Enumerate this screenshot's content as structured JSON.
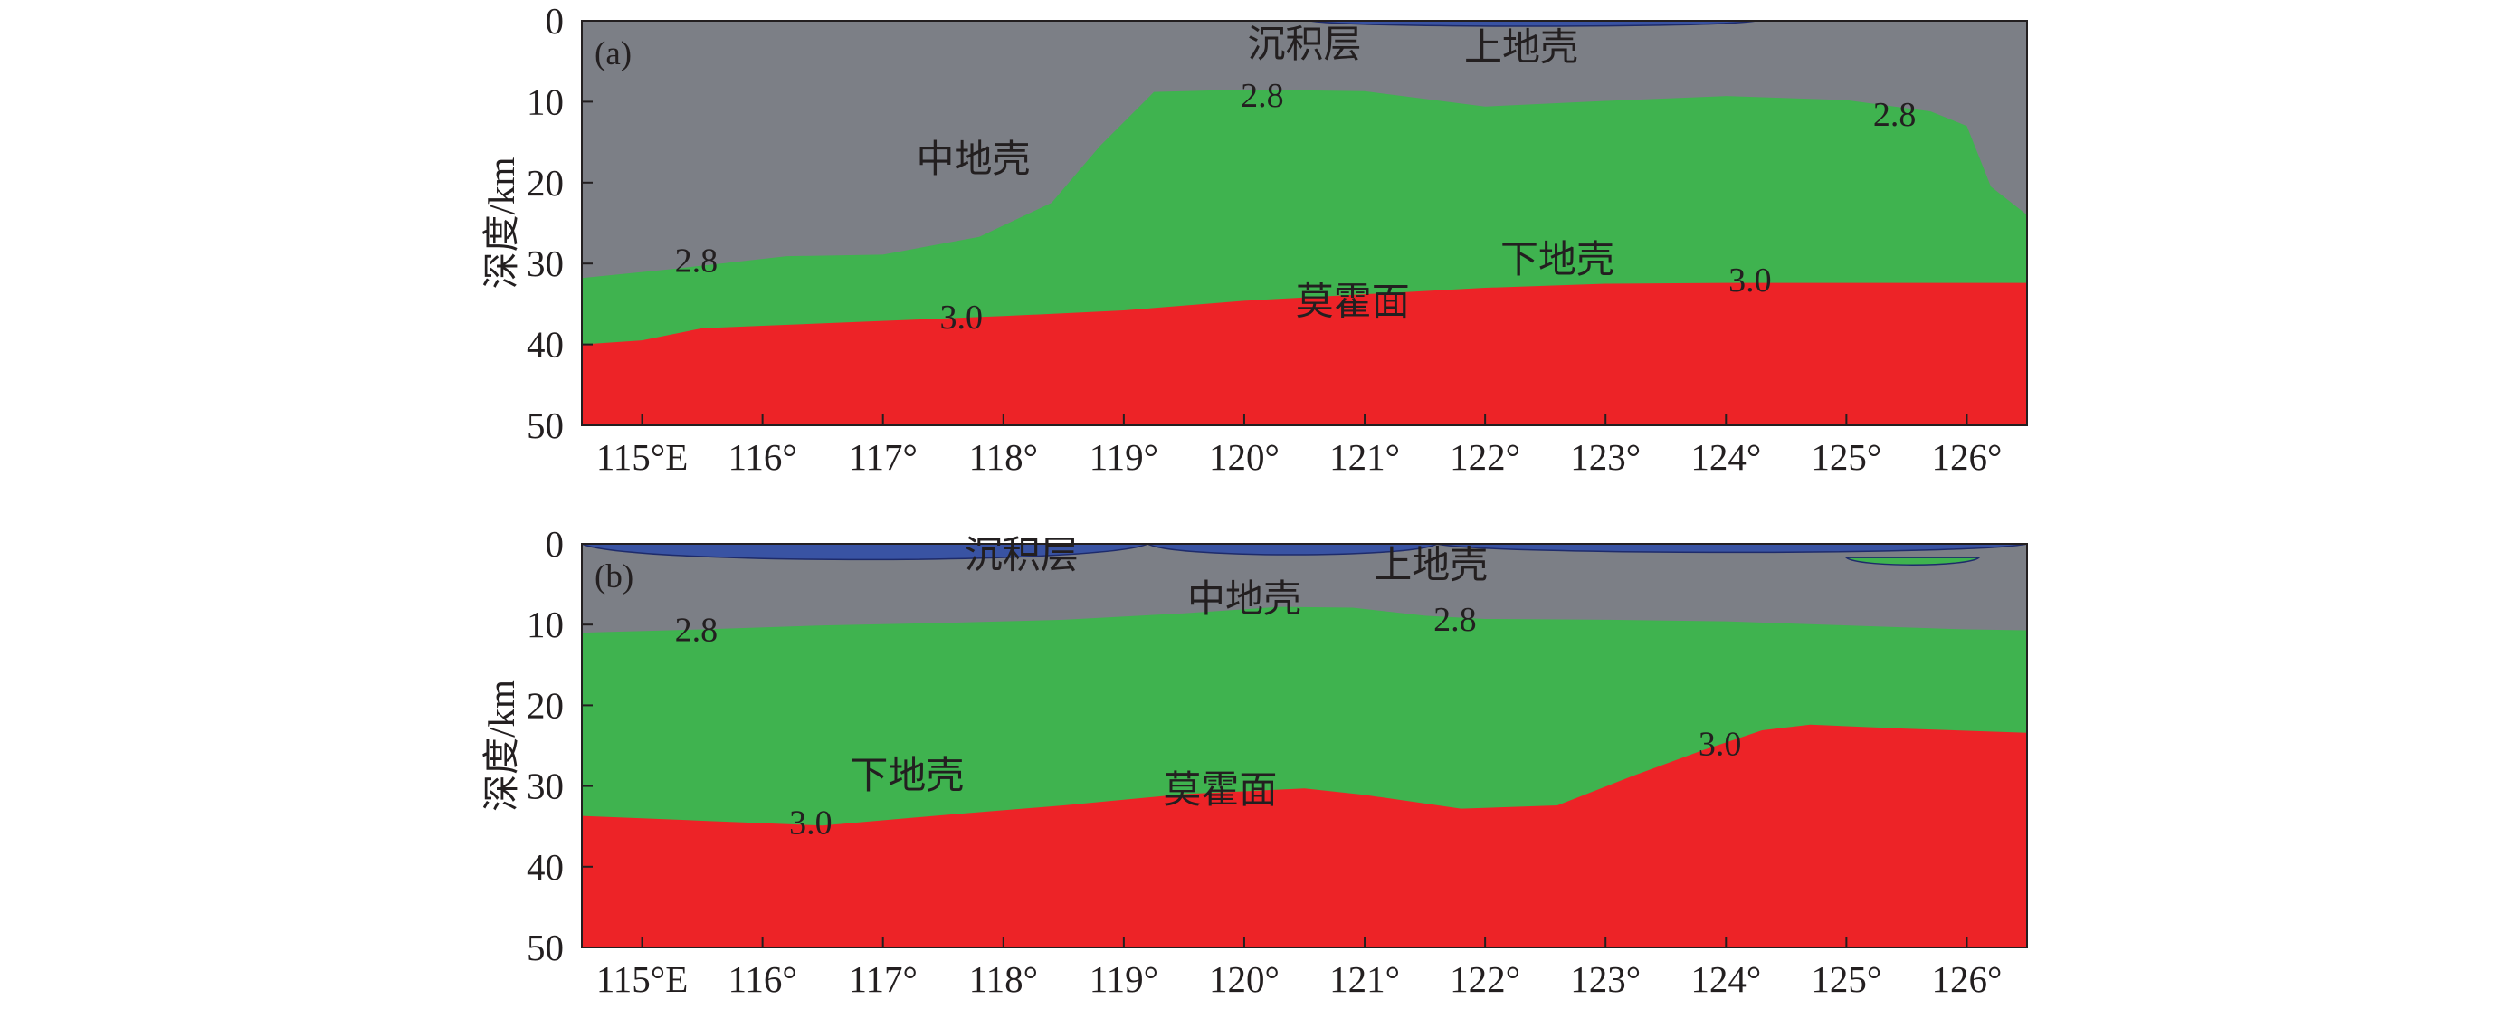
{
  "chart_data": [
    {
      "panel": "(a)",
      "type": "area",
      "xlabel": "",
      "ylabel": "深度/km",
      "xlim": [
        114.5,
        126.5
      ],
      "ylim": [
        0,
        50
      ],
      "y_inverted": true,
      "x_ticks": [
        115,
        116,
        117,
        118,
        119,
        120,
        121,
        122,
        123,
        124,
        125,
        126
      ],
      "x_tick_labels": [
        "115°E",
        "116°",
        "117°",
        "118°",
        "119°",
        "120°",
        "121°",
        "122°",
        "123°",
        "124°",
        "125°",
        "126°"
      ],
      "y_ticks": [
        0,
        10,
        20,
        30,
        40,
        50
      ],
      "y_tick_labels": [
        "0",
        "10",
        "20",
        "30",
        "40",
        "50"
      ],
      "colors": {
        "sediment": "#3953a3",
        "upper_crust": "#7c7f86",
        "middle_crust": "#3fb34f",
        "lower_crust": "#ed2327"
      },
      "sediment_lenses": [
        {
          "x_start": 120.55,
          "x_end": 124.25,
          "top": 0,
          "bottom": 0.9
        }
      ],
      "contour_2_8": {
        "x": [
          114.5,
          115.3,
          116.2,
          117.0,
          117.8,
          118.4,
          118.8,
          119.25,
          120.0,
          121.0,
          122.0,
          123.0,
          124.0,
          125.0,
          125.7,
          126.0,
          126.2,
          126.5
        ],
        "y": [
          31.8,
          30.6,
          29.1,
          28.9,
          26.7,
          22.5,
          15.5,
          8.8,
          8.5,
          8.7,
          10.6,
          9.9,
          9.3,
          9.8,
          11.2,
          13.0,
          20.5,
          24.0
        ]
      },
      "moho_3_0": {
        "x": [
          114.5,
          115.0,
          115.5,
          116.0,
          117.0,
          118.0,
          119.0,
          120.0,
          121.0,
          122.0,
          123.0,
          124.0,
          125.0,
          126.5
        ],
        "y": [
          40.0,
          39.5,
          38.0,
          37.7,
          37.1,
          36.5,
          35.8,
          34.6,
          33.8,
          33.0,
          32.5,
          32.4,
          32.4,
          32.4
        ]
      },
      "labels": [
        {
          "text": "沉积层",
          "x": 120.5,
          "y": 2.8
        },
        {
          "text": "上地壳",
          "x": 122.3,
          "y": 3.2
        },
        {
          "text": "中地壳",
          "x": 117.75,
          "y": 17.0
        },
        {
          "text": "下地壳",
          "x": 122.6,
          "y": 29.4
        },
        {
          "text": "莫霍面",
          "x": 120.9,
          "y": 34.6
        }
      ],
      "contour_labels": [
        {
          "text": "2.8",
          "x": 120.15,
          "y": 9.2
        },
        {
          "text": "2.8",
          "x": 125.4,
          "y": 11.5
        },
        {
          "text": "2.8",
          "x": 115.45,
          "y": 29.6
        },
        {
          "text": "3.0",
          "x": 117.65,
          "y": 36.6
        },
        {
          "text": "3.0",
          "x": 124.2,
          "y": 32.0
        }
      ]
    },
    {
      "panel": "(b)",
      "type": "area",
      "xlabel": "",
      "ylabel": "深度/km",
      "xlim": [
        114.5,
        126.5
      ],
      "ylim": [
        0,
        50
      ],
      "y_inverted": true,
      "x_ticks": [
        115,
        116,
        117,
        118,
        119,
        120,
        121,
        122,
        123,
        124,
        125,
        126
      ],
      "x_tick_labels": [
        "115°E",
        "116°",
        "117°",
        "118°",
        "119°",
        "120°",
        "121°",
        "122°",
        "123°",
        "124°",
        "125°",
        "126°"
      ],
      "y_ticks": [
        0,
        10,
        20,
        30,
        40,
        50
      ],
      "y_tick_labels": [
        "0",
        "10",
        "20",
        "30",
        "40",
        "50"
      ],
      "colors": {
        "sediment": "#3953a3",
        "upper_crust": "#7c7f86",
        "middle_crust": "#3fb34f",
        "lower_crust": "#ed2327"
      },
      "sediment_lenses": [
        {
          "x_start": 114.5,
          "x_end": 119.2,
          "top": 0,
          "bottom": 2.6
        },
        {
          "x_start": 119.2,
          "x_end": 121.6,
          "top": 0,
          "bottom": 1.8
        },
        {
          "x_start": 121.6,
          "x_end": 126.5,
          "top": 0,
          "bottom": 1.4
        }
      ],
      "middle_crust_lenses": [
        {
          "x_start": 125.0,
          "x_end": 126.1,
          "top": 1.7,
          "bottom": 2.9
        }
      ],
      "contour_2_8": {
        "x": [
          114.5,
          115.5,
          116.5,
          117.5,
          118.5,
          119.5,
          120.3,
          120.9,
          121.5,
          122.0,
          123.0,
          124.0,
          125.0,
          126.0,
          126.5
        ],
        "y": [
          11.0,
          10.6,
          10.1,
          9.8,
          9.4,
          8.6,
          7.8,
          7.9,
          8.9,
          9.3,
          9.4,
          9.6,
          10.1,
          10.6,
          10.7
        ]
      },
      "moho_3_0": {
        "x": [
          114.5,
          115.5,
          116.5,
          117.5,
          118.5,
          119.5,
          120.5,
          121.0,
          121.8,
          122.6,
          123.2,
          123.8,
          124.3,
          124.7,
          125.5,
          126.5
        ],
        "y": [
          33.7,
          34.3,
          34.9,
          33.6,
          32.4,
          31.0,
          30.3,
          31.1,
          32.8,
          32.4,
          28.9,
          25.6,
          23.1,
          22.4,
          22.9,
          23.4
        ]
      },
      "labels": [
        {
          "text": "沉积层",
          "x": 118.15,
          "y": 1.3
        },
        {
          "text": "上地壳",
          "x": 121.55,
          "y": 2.5
        },
        {
          "text": "中地壳",
          "x": 120.0,
          "y": 6.7
        },
        {
          "text": "下地壳",
          "x": 117.2,
          "y": 28.6
        },
        {
          "text": "莫霍面",
          "x": 119.8,
          "y": 30.4
        }
      ],
      "contour_labels": [
        {
          "text": "2.8",
          "x": 115.45,
          "y": 10.6
        },
        {
          "text": "2.8",
          "x": 121.75,
          "y": 9.3
        },
        {
          "text": "3.0",
          "x": 123.95,
          "y": 24.7
        },
        {
          "text": "3.0",
          "x": 116.4,
          "y": 34.5
        }
      ]
    }
  ],
  "panel_labels": [
    "(a)",
    "(b)"
  ]
}
